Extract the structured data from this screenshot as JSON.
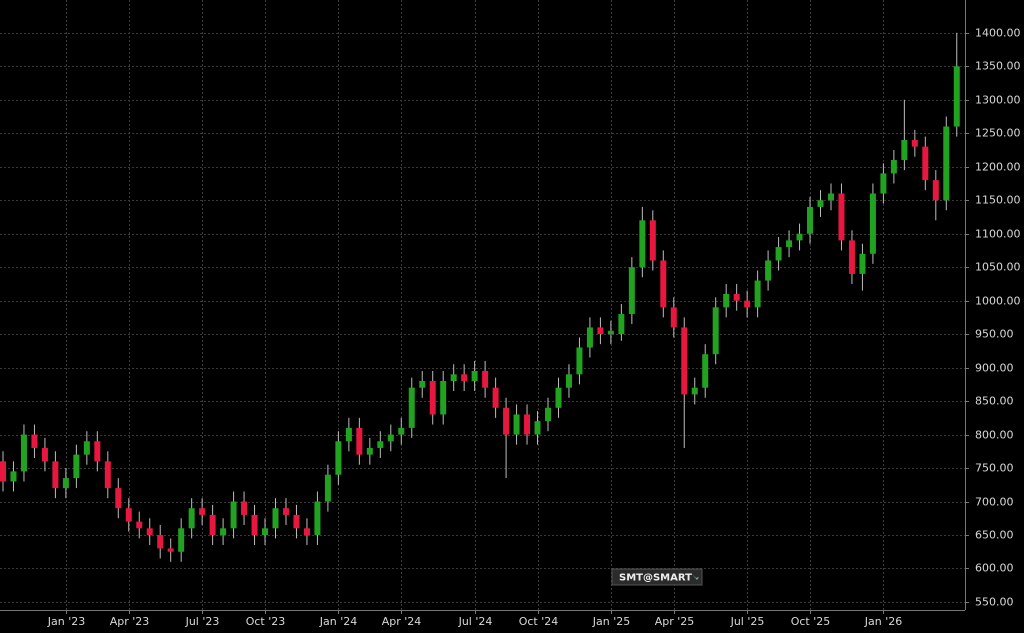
{
  "chart_data": {
    "type": "candlestick",
    "watermark": "SMT@SMART",
    "up_color": "#21a321",
    "down_color": "#e8173f",
    "wick_color": "#bdbdbd",
    "grid": true,
    "categories": [
      null,
      null,
      null,
      null,
      null,
      null,
      "Jan '23",
      null,
      null,
      null,
      null,
      null,
      "Apr '23",
      null,
      null,
      null,
      null,
      null,
      null,
      "Jul '23",
      null,
      null,
      null,
      null,
      null,
      "Oct '23",
      null,
      null,
      null,
      null,
      null,
      null,
      "Jan '24",
      null,
      null,
      null,
      null,
      null,
      "Apr '24",
      null,
      null,
      null,
      null,
      null,
      null,
      "Jul '24",
      null,
      null,
      null,
      null,
      null,
      "Oct '24",
      null,
      null,
      null,
      null,
      null,
      null,
      "Jan '25",
      null,
      null,
      null,
      null,
      null,
      "Apr '25",
      null,
      null,
      null,
      null,
      null,
      null,
      "Jul '25",
      null,
      null,
      null,
      null,
      null,
      "Oct '25",
      null,
      null,
      null,
      null,
      null,
      null,
      "Jan '26",
      null,
      null,
      null,
      null,
      null,
      null,
      null
    ],
    "open": [
      760,
      730,
      745,
      800,
      780,
      760,
      720,
      735,
      770,
      790,
      760,
      720,
      690,
      670,
      660,
      650,
      630,
      625,
      660,
      690,
      680,
      650,
      660,
      700,
      680,
      650,
      660,
      690,
      680,
      660,
      650,
      700,
      740,
      790,
      810,
      770,
      780,
      790,
      800,
      810,
      870,
      880,
      830,
      880,
      890,
      880,
      895,
      870,
      840,
      800,
      830,
      800,
      820,
      840,
      870,
      890,
      930,
      960,
      950,
      950,
      980,
      1050,
      1120,
      1060,
      990,
      960,
      860,
      870,
      920,
      990,
      1010,
      1000,
      990,
      1030,
      1060,
      1080,
      1090,
      1100,
      1140,
      1150,
      1160,
      1090,
      1040,
      1070,
      1160,
      1190,
      1210,
      1240,
      1230,
      1180,
      1150,
      1260
    ],
    "high": [
      775,
      760,
      815,
      815,
      795,
      775,
      750,
      785,
      805,
      805,
      775,
      735,
      705,
      685,
      675,
      665,
      645,
      675,
      705,
      705,
      695,
      675,
      715,
      715,
      695,
      675,
      705,
      705,
      695,
      675,
      715,
      755,
      805,
      825,
      825,
      795,
      805,
      815,
      825,
      885,
      895,
      895,
      895,
      905,
      905,
      910,
      910,
      885,
      855,
      845,
      845,
      835,
      855,
      885,
      905,
      945,
      975,
      975,
      970,
      995,
      1065,
      1140,
      1135,
      1075,
      1005,
      975,
      885,
      935,
      1005,
      1025,
      1025,
      1015,
      1045,
      1075,
      1095,
      1105,
      1115,
      1155,
      1165,
      1175,
      1175,
      1105,
      1085,
      1175,
      1205,
      1225,
      1300,
      1255,
      1245,
      1195,
      1275,
      1400
    ],
    "low": [
      715,
      715,
      730,
      765,
      745,
      705,
      705,
      720,
      755,
      745,
      705,
      675,
      655,
      645,
      635,
      615,
      610,
      610,
      645,
      665,
      635,
      635,
      645,
      665,
      635,
      635,
      645,
      665,
      645,
      635,
      635,
      685,
      725,
      775,
      755,
      755,
      765,
      775,
      785,
      795,
      855,
      815,
      815,
      865,
      865,
      865,
      855,
      825,
      735,
      785,
      785,
      785,
      805,
      825,
      855,
      875,
      915,
      935,
      935,
      940,
      965,
      1035,
      1045,
      975,
      945,
      780,
      845,
      855,
      905,
      975,
      985,
      975,
      975,
      1015,
      1045,
      1065,
      1075,
      1085,
      1125,
      1135,
      1075,
      1025,
      1015,
      1055,
      1145,
      1175,
      1195,
      1215,
      1165,
      1120,
      1135,
      1245
    ],
    "close": [
      730,
      745,
      800,
      780,
      760,
      720,
      735,
      770,
      790,
      760,
      720,
      690,
      670,
      660,
      650,
      630,
      625,
      660,
      690,
      680,
      650,
      660,
      700,
      680,
      650,
      660,
      690,
      680,
      660,
      650,
      700,
      740,
      790,
      810,
      770,
      780,
      790,
      800,
      810,
      870,
      880,
      830,
      880,
      890,
      880,
      895,
      870,
      840,
      800,
      830,
      800,
      820,
      840,
      870,
      890,
      930,
      960,
      950,
      955,
      980,
      1050,
      1120,
      1060,
      990,
      960,
      860,
      870,
      920,
      990,
      1010,
      1000,
      990,
      1030,
      1060,
      1080,
      1090,
      1100,
      1140,
      1150,
      1160,
      1090,
      1040,
      1070,
      1160,
      1190,
      1210,
      1240,
      1230,
      1180,
      1150,
      1260,
      1350
    ],
    "ylim": [
      538,
      1449
    ],
    "yticks": [
      {
        "value": 550,
        "label": "550.00"
      },
      {
        "value": 600,
        "label": "600.00"
      },
      {
        "value": 650,
        "label": "650.00"
      },
      {
        "value": 700,
        "label": "700.00"
      },
      {
        "value": 750,
        "label": "750.00"
      },
      {
        "value": 800,
        "label": "800.00"
      },
      {
        "value": 850,
        "label": "850.00"
      },
      {
        "value": 900,
        "label": "900.00"
      },
      {
        "value": 950,
        "label": "950.00"
      },
      {
        "value": 1000,
        "label": "1000.00"
      },
      {
        "value": 1050,
        "label": "1050.00"
      },
      {
        "value": 1100,
        "label": "1100.00"
      },
      {
        "value": 1150,
        "label": "1150.00"
      },
      {
        "value": 1200,
        "label": "1200.00"
      },
      {
        "value": 1250,
        "label": "1250.00"
      },
      {
        "value": 1300,
        "label": "1300.00"
      },
      {
        "value": 1350,
        "label": "1350.00"
      },
      {
        "value": 1400,
        "label": "1400.00"
      }
    ]
  }
}
